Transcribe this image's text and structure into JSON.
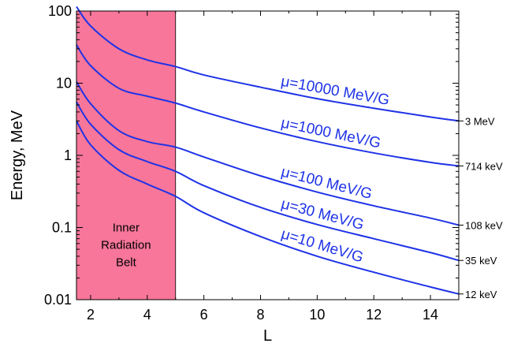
{
  "chart_data": {
    "type": "line",
    "xlabel": "L",
    "ylabel": "Energy, MeV",
    "xlim": [
      1.5,
      15
    ],
    "ylim": [
      0.01,
      100
    ],
    "yscale": "log",
    "x_ticks": [
      2,
      4,
      6,
      8,
      10,
      12,
      14
    ],
    "x_tick_labels": [
      "2",
      "4",
      "6",
      "8",
      "10",
      "12",
      "14"
    ],
    "y_ticks": [
      0.01,
      0.1,
      1,
      10,
      100
    ],
    "y_tick_labels": [
      "0.01",
      "0.1",
      "1",
      "10",
      "100"
    ],
    "grid": false,
    "colors": {
      "curve": "#1f33e6",
      "region": "#f7769a",
      "axis": "#000000"
    },
    "shaded_region": {
      "x_range": [
        1.5,
        5
      ],
      "label_lines": [
        "Inner",
        "Radiation",
        "Belt"
      ]
    },
    "series": [
      {
        "name": "μ=10000 MeV/G",
        "right_label": "3 MeV",
        "x": [
          1.5,
          2,
          3,
          4,
          5,
          6,
          8,
          10,
          12,
          14,
          15
        ],
        "y": [
          115,
          62,
          30,
          21,
          17,
          13,
          8.8,
          6.1,
          4.5,
          3.4,
          3.0
        ]
      },
      {
        "name": "μ=1000 MeV/G",
        "right_label": "714 keV",
        "x": [
          1.5,
          2,
          3,
          4,
          5,
          6,
          8,
          10,
          12,
          14,
          15
        ],
        "y": [
          34,
          17.5,
          8.5,
          6.6,
          5.3,
          4.0,
          2.4,
          1.55,
          1.08,
          0.8,
          0.714
        ]
      },
      {
        "name": "μ=100 MeV/G",
        "right_label": "108 keV",
        "x": [
          1.5,
          2,
          3,
          4,
          5,
          6,
          8,
          10,
          12,
          14,
          15
        ],
        "y": [
          10.5,
          5.2,
          2.2,
          1.55,
          1.3,
          0.95,
          0.52,
          0.31,
          0.2,
          0.135,
          0.108
        ]
      },
      {
        "name": "μ=30 MeV/G",
        "right_label": "35 keV",
        "x": [
          1.5,
          2,
          3,
          4,
          5,
          6,
          8,
          10,
          12,
          14,
          15
        ],
        "y": [
          5.5,
          2.7,
          1.2,
          0.82,
          0.6,
          0.38,
          0.19,
          0.11,
          0.07,
          0.045,
          0.035
        ]
      },
      {
        "name": "μ=10 MeV/G",
        "right_label": "12 keV",
        "x": [
          1.5,
          2,
          3,
          4,
          5,
          6,
          8,
          10,
          12,
          14,
          15
        ],
        "y": [
          3.0,
          1.4,
          0.62,
          0.4,
          0.27,
          0.16,
          0.075,
          0.04,
          0.024,
          0.015,
          0.012
        ]
      }
    ]
  }
}
